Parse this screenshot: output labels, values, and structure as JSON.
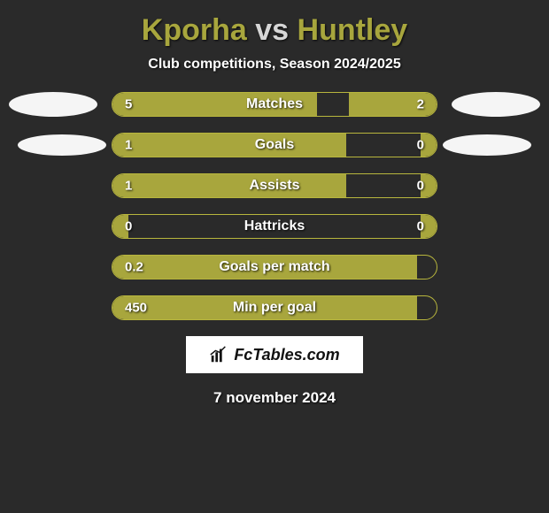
{
  "title": {
    "player1": "Kporha",
    "vs": "vs",
    "player2": "Huntley",
    "player1_color": "#a8a63d",
    "vs_color": "#d6d6d6",
    "player2_color": "#a8a63d",
    "fontsize": 34
  },
  "subtitle": "Club competitions, Season 2024/2025",
  "subtitle_fontsize": 16,
  "bar_style": {
    "track_width": 368,
    "track_height": 28,
    "border_color": "#b8b63d",
    "border_radius": 14,
    "fill_color": "#a8a63d",
    "label_color": "#ffffff",
    "label_fontsize": 16,
    "value_color": "#ffffff",
    "value_fontsize": 15
  },
  "background_color": "#2a2a2a",
  "rows": [
    {
      "label": "Matches",
      "left_val": "5",
      "right_val": "2",
      "left_pct": 63,
      "right_pct": 27,
      "ovals": "both1"
    },
    {
      "label": "Goals",
      "left_val": "1",
      "right_val": "0",
      "left_pct": 72,
      "right_pct": 5,
      "ovals": "both2"
    },
    {
      "label": "Assists",
      "left_val": "1",
      "right_val": "0",
      "left_pct": 72,
      "right_pct": 5,
      "ovals": "none"
    },
    {
      "label": "Hattricks",
      "left_val": "0",
      "right_val": "0",
      "left_pct": 5,
      "right_pct": 5,
      "ovals": "none"
    },
    {
      "label": "Goals per match",
      "left_val": "0.2",
      "right_val": "",
      "left_pct": 94,
      "right_pct": 0,
      "ovals": "none"
    },
    {
      "label": "Min per goal",
      "left_val": "450",
      "right_val": "",
      "left_pct": 94,
      "right_pct": 0,
      "ovals": "none"
    }
  ],
  "brand": {
    "text": "FcTables.com",
    "bg": "#ffffff",
    "text_color": "#111111",
    "fontsize": 18
  },
  "date": "7 november 2024",
  "date_fontsize": 17,
  "oval_color": "#f5f5f5"
}
